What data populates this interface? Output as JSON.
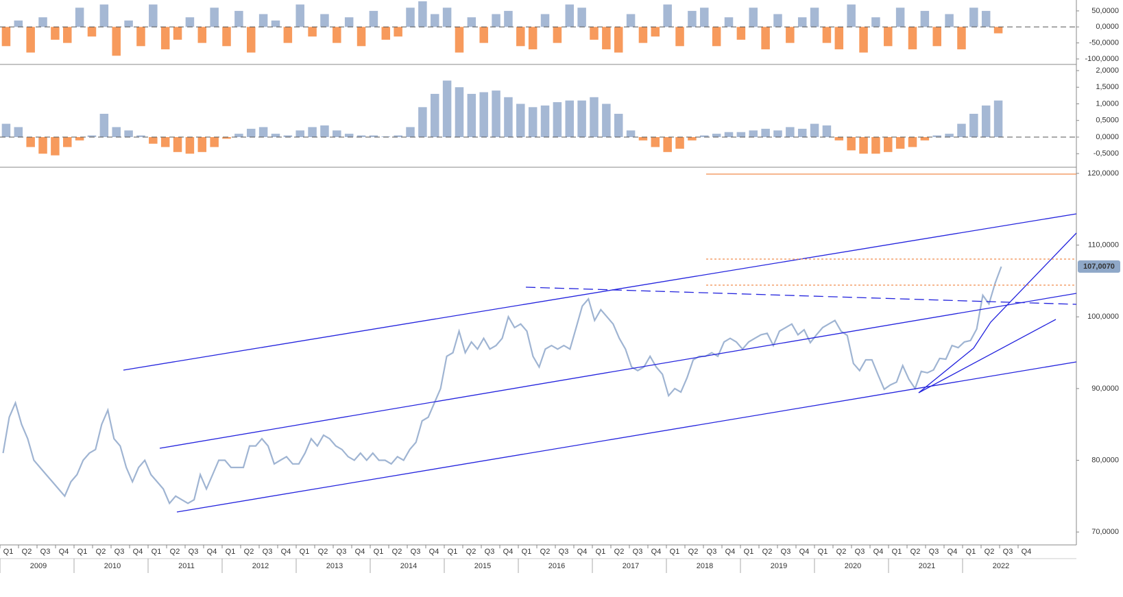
{
  "chart_data": [
    {
      "type": "bar",
      "color": "#a5b8d4",
      "negative_color": "#f79a5c",
      "ylim": [
        -115000,
        84000
      ],
      "yticks": [
        {
          "value": 50000,
          "label": "50,0000"
        },
        {
          "value": 0,
          "label": "0,0000"
        },
        {
          "value": -50000,
          "label": "-50,0000"
        },
        {
          "value": -100000,
          "label": "-100,0000"
        }
      ],
      "values": [
        -60000,
        20000,
        -80000,
        30000,
        -40000,
        -50000,
        60000,
        -30000,
        70000,
        -90000,
        20000,
        -60000,
        70000,
        -70000,
        -40000,
        30000,
        -50000,
        60000,
        -60000,
        50000,
        -80000,
        40000,
        20000,
        -50000,
        70000,
        -30000,
        40000,
        -50000,
        30000,
        -60000,
        50000,
        -40000,
        -30000,
        60000,
        80000,
        40000,
        60000,
        -80000,
        30000,
        -50000,
        40000,
        50000,
        -60000,
        -70000,
        40000,
        -50000,
        70000,
        60000,
        -40000,
        -70000,
        -80000,
        40000,
        -50000,
        -30000,
        70000,
        -60000,
        50000,
        60000,
        -60000,
        30000,
        -40000,
        60000,
        -70000,
        40000,
        -50000,
        30000,
        60000,
        -50000,
        -70000,
        70000,
        -80000,
        30000,
        -60000,
        60000,
        -70000,
        50000,
        -60000,
        40000,
        -70000,
        60000,
        50000,
        -20000
      ]
    },
    {
      "type": "bar",
      "color": "#a5b8d4",
      "negative_color": "#f79a5c",
      "ylim": [
        -0.887,
        2.165
      ],
      "yticks": [
        {
          "value": 2,
          "label": "2,0000"
        },
        {
          "value": 1.5,
          "label": "1,5000"
        },
        {
          "value": 1,
          "label": "1,0000"
        },
        {
          "value": 0.5,
          "label": "0,5000"
        },
        {
          "value": 0,
          "label": "0,0000"
        },
        {
          "value": -0.5,
          "label": "-0,5000"
        }
      ],
      "values": [
        0.4,
        0.3,
        -0.3,
        -0.5,
        -0.55,
        -0.3,
        -0.1,
        0.05,
        0.7,
        0.3,
        0.2,
        0.05,
        -0.2,
        -0.3,
        -0.45,
        -0.5,
        -0.45,
        -0.3,
        -0.05,
        0.1,
        0.25,
        0.3,
        0.1,
        0.05,
        0.2,
        0.3,
        0.35,
        0.2,
        0.1,
        0.05,
        0.05,
        0.02,
        0.05,
        0.3,
        0.9,
        1.3,
        1.7,
        1.5,
        1.3,
        1.35,
        1.4,
        1.2,
        1.0,
        0.9,
        0.95,
        1.05,
        1.1,
        1.1,
        1.2,
        1.0,
        0.7,
        0.2,
        -0.1,
        -0.3,
        -0.45,
        -0.35,
        -0.1,
        0.05,
        0.1,
        0.15,
        0.15,
        0.2,
        0.25,
        0.2,
        0.3,
        0.25,
        0.4,
        0.35,
        -0.1,
        -0.4,
        -0.5,
        -0.5,
        -0.45,
        -0.35,
        -0.3,
        -0.1,
        0.05,
        0.1,
        0.4,
        0.7,
        0.95,
        1.1
      ]
    },
    {
      "type": "line",
      "color": "#9fb4d2",
      "ylim": [
        68.2,
        120.76
      ],
      "yticks": [
        {
          "value": 120,
          "label": "120,0000"
        },
        {
          "value": 110,
          "label": "110,0000"
        },
        {
          "value": 100,
          "label": "100,0000"
        },
        {
          "value": 90,
          "label": "90,0000"
        },
        {
          "value": 80,
          "label": "80,0000"
        },
        {
          "value": 70,
          "label": "70,0000"
        }
      ],
      "last_label": {
        "value": 107.007,
        "label": "107,0070"
      },
      "values": [
        81,
        86,
        88,
        85,
        83,
        80,
        79,
        78,
        77,
        76,
        75,
        77,
        78,
        80,
        81,
        81.5,
        85,
        87,
        83,
        82,
        79,
        77,
        79,
        80,
        78,
        77,
        76,
        74,
        75,
        74.5,
        74,
        74.5,
        78,
        76,
        78,
        80,
        80,
        79,
        79,
        79,
        82,
        82,
        83,
        82,
        79.5,
        80,
        80.5,
        79.5,
        79.5,
        81,
        83,
        82,
        83.5,
        83,
        82,
        81.5,
        80.5,
        80,
        81,
        80,
        81,
        80,
        80,
        79.5,
        80.5,
        80,
        81.5,
        82.5,
        85.5,
        86,
        88,
        90,
        94.5,
        95,
        98,
        95,
        96.5,
        95.5,
        97,
        95.5,
        96,
        97,
        100,
        98.5,
        99,
        98,
        94.5,
        93,
        95.5,
        96,
        95.5,
        96,
        95.5,
        98.5,
        101.5,
        102.5,
        99.5,
        101,
        100,
        99,
        97,
        95.5,
        93,
        92.5,
        93,
        94.5,
        93,
        92,
        89,
        90,
        89.5,
        91.5,
        94,
        94.5,
        94.5,
        95,
        94.5,
        96.5,
        97,
        96.5,
        95.5,
        96.5,
        97,
        97.5,
        97.7,
        96,
        98,
        98.5,
        99,
        97.5,
        98.2,
        96.4,
        97.5,
        98.5,
        99,
        99.5,
        98,
        97.4,
        93.5,
        92.5,
        94,
        94,
        91.9,
        89.9,
        90.5,
        90.9,
        93.2,
        91.3,
        90,
        92.4,
        92.2,
        92.6,
        94.2,
        94.1,
        96,
        95.7,
        96.5,
        96.7,
        98.3,
        103,
        101.8,
        104.7,
        107
      ]
    }
  ],
  "x_axis": {
    "quarters": [
      "Q1",
      "Q2",
      "Q3",
      "Q4",
      "Q1",
      "Q2",
      "Q3",
      "Q4",
      "Q1",
      "Q2",
      "Q3",
      "Q4",
      "Q1",
      "Q2",
      "Q3",
      "Q4",
      "Q1",
      "Q2",
      "Q3",
      "Q4",
      "Q1",
      "Q2",
      "Q3",
      "Q4",
      "Q1",
      "Q2",
      "Q3",
      "Q4",
      "Q1",
      "Q2",
      "Q3",
      "Q4",
      "Q1",
      "Q2",
      "Q3",
      "Q4",
      "Q1",
      "Q2",
      "Q3",
      "Q4",
      "Q1",
      "Q2",
      "Q3",
      "Q4",
      "Q1",
      "Q2",
      "Q3",
      "Q4",
      "Q1",
      "Q2",
      "Q3",
      "Q4",
      "Q1",
      "Q2",
      "Q3",
      "Q4"
    ],
    "years": [
      "2009",
      "2010",
      "2011",
      "2012",
      "2013",
      "2014",
      "2015",
      "2016",
      "2017",
      "2018",
      "2019",
      "2020",
      "2021",
      "2022"
    ]
  }
}
